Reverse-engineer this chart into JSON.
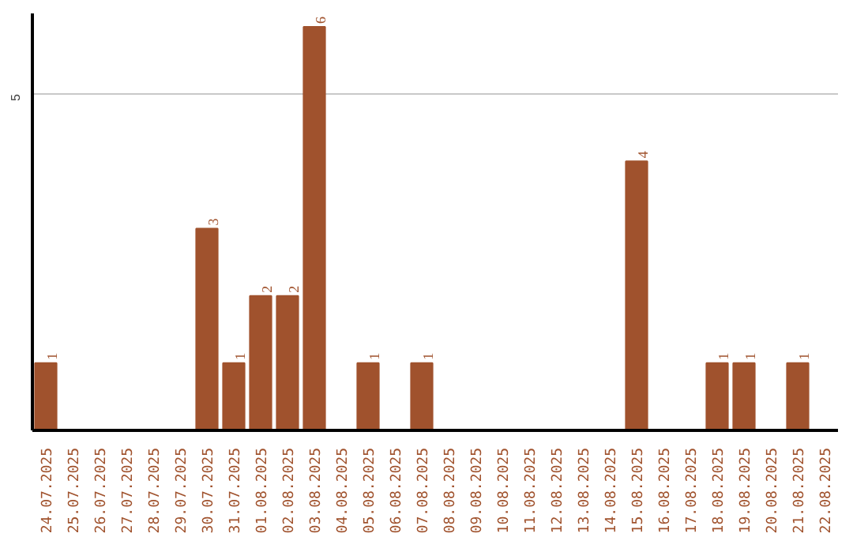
{
  "chart_data": {
    "type": "bar",
    "categories": [
      "24.07.2025",
      "25.07.2025",
      "26.07.2025",
      "27.07.2025",
      "28.07.2025",
      "29.07.2025",
      "30.07.2025",
      "31.07.2025",
      "01.08.2025",
      "02.08.2025",
      "03.08.2025",
      "04.08.2025",
      "05.08.2025",
      "06.08.2025",
      "07.08.2025",
      "08.08.2025",
      "09.08.2025",
      "10.08.2025",
      "11.08.2025",
      "12.08.2025",
      "13.08.2025",
      "14.08.2025",
      "15.08.2025",
      "16.08.2025",
      "17.08.2025",
      "18.08.2025",
      "19.08.2025",
      "20.08.2025",
      "21.08.2025",
      "22.08.2025"
    ],
    "values": [
      1,
      0,
      0,
      0,
      0,
      0,
      3,
      1,
      2,
      2,
      6,
      0,
      1,
      0,
      1,
      0,
      0,
      0,
      0,
      0,
      0,
      0,
      4,
      0,
      0,
      1,
      1,
      0,
      1,
      0
    ],
    "value_labels": [
      "1",
      null,
      null,
      null,
      null,
      null,
      "3",
      "1",
      "2",
      "2",
      "6",
      null,
      "1",
      null,
      "1",
      null,
      null,
      null,
      null,
      null,
      null,
      null,
      "4",
      null,
      null,
      "1",
      "1",
      null,
      "1",
      null
    ],
    "color": "#a0522d",
    "ylim": [
      0,
      6.2
    ],
    "yticks": [
      5
    ],
    "grid": "y"
  }
}
